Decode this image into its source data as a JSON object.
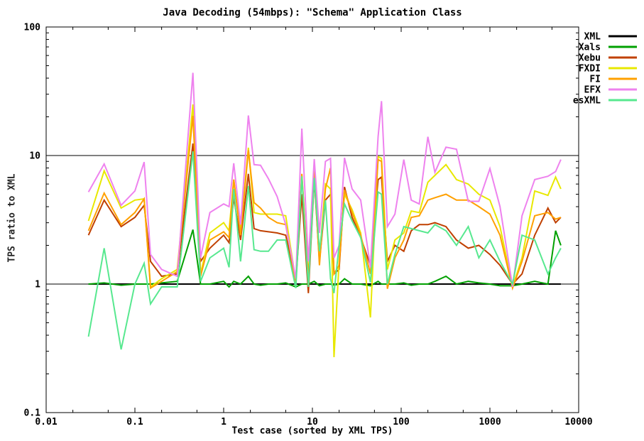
{
  "chart": {
    "title": "Java Decoding (54mbps): \"Schema\" Application Class",
    "xlabel": "Test case (sorted by XML TPS)",
    "ylabel": "TPS ratio to XML"
  },
  "chart_data": {
    "type": "line",
    "title": "Java Decoding (54mbps): \"Schema\" Application Class",
    "xlabel": "Test case (sorted by XML TPS)",
    "ylabel": "TPS ratio to XML",
    "x_scale": "log",
    "y_scale": "log",
    "x_range": [
      0.01,
      10000
    ],
    "y_range": [
      0.1,
      100
    ],
    "x_ticks": [
      {
        "v": 0.01,
        "label": "0.01"
      },
      {
        "v": 0.1,
        "label": "0.1"
      },
      {
        "v": 1,
        "label": "1"
      },
      {
        "v": 10,
        "label": "10"
      },
      {
        "v": 100,
        "label": "100"
      },
      {
        "v": 1000,
        "label": "1000"
      },
      {
        "v": 10000,
        "label": "10000"
      }
    ],
    "y_ticks": [
      {
        "v": 0.1,
        "label": "0.1"
      },
      {
        "v": 1,
        "label": "1"
      },
      {
        "v": 10,
        "label": "10"
      },
      {
        "v": 100,
        "label": "100"
      }
    ],
    "y_gridlines": [
      1,
      10
    ],
    "x_minor_multiples": [
      2,
      5
    ],
    "y_minor_multiples": [
      2,
      3,
      4,
      5,
      6,
      7,
      8,
      9
    ],
    "legend_position": "top-right-outside",
    "x": [
      0.03,
      0.045,
      0.07,
      0.1,
      0.127,
      0.15,
      0.2,
      0.3,
      0.45,
      0.55,
      0.7,
      1.0,
      1.15,
      1.3,
      1.55,
      1.9,
      2.2,
      2.6,
      3.2,
      4.0,
      5.0,
      6.5,
      7.6,
      9.0,
      10.5,
      12,
      14,
      16,
      17.5,
      20,
      23,
      28,
      35,
      45,
      55,
      60,
      70,
      85,
      107,
      130,
      160,
      200,
      240,
      320,
      420,
      570,
      750,
      1000,
      1300,
      1800,
      2300,
      3200,
      4500,
      5500,
      6300
    ],
    "series": [
      {
        "name": "XML",
        "color": "#000000",
        "values": [
          1,
          1,
          1,
          1,
          1,
          1,
          1,
          1,
          1,
          1,
          1,
          1,
          1,
          1,
          1,
          1,
          1,
          1,
          1,
          1,
          1,
          1,
          1,
          1,
          1,
          1,
          1,
          1,
          1,
          1,
          1,
          1,
          1,
          1,
          1,
          1,
          1,
          1,
          1,
          1,
          1,
          1,
          1,
          1,
          1,
          1,
          1,
          1,
          1,
          1,
          1,
          1,
          1,
          1,
          1
        ]
      },
      {
        "name": "Xals",
        "color": "#00a000",
        "values": [
          1,
          1.02,
          0.98,
          1,
          1,
          1,
          1.02,
          1.05,
          2.65,
          1,
          1,
          1.05,
          0.95,
          1.05,
          1,
          1.15,
          1,
          0.98,
          1,
          1,
          1.02,
          0.95,
          1,
          1,
          1.05,
          0.97,
          1,
          1,
          0.98,
          1,
          1.1,
          1,
          1,
          0.97,
          1.05,
          1,
          1,
          1,
          1.02,
          0.98,
          1,
          1,
          1.05,
          1.15,
          1,
          1.05,
          1.02,
          1,
          0.97,
          0.97,
          1,
          1.05,
          1,
          2.6,
          2
        ]
      },
      {
        "name": "Xebu",
        "color": "#c04000",
        "values": [
          2.4,
          4.5,
          2.8,
          3.3,
          4.1,
          1.5,
          1.15,
          1.2,
          12.4,
          1.5,
          1.9,
          2.4,
          2.1,
          4.7,
          2.2,
          7.2,
          2.7,
          2.6,
          2.55,
          2.5,
          2.4,
          1.05,
          5,
          0.85,
          6.6,
          1.5,
          4.5,
          5,
          1.2,
          1.3,
          5.7,
          3.3,
          2.3,
          1.4,
          6.5,
          6.8,
          1.5,
          2,
          1.8,
          2.6,
          2.9,
          2.9,
          3,
          2.8,
          2.2,
          1.9,
          2,
          1.7,
          1.4,
          1,
          1.2,
          2.4,
          3.9,
          3,
          3.3
        ]
      },
      {
        "name": "FXDI",
        "color": "#e8e800",
        "values": [
          3.1,
          7.6,
          3.9,
          4.5,
          4.6,
          0.95,
          1.1,
          1.3,
          25,
          1.2,
          2.5,
          3,
          2.6,
          6.5,
          2.6,
          11.5,
          3.6,
          3.5,
          3.5,
          3.5,
          3.4,
          1.05,
          7,
          1.15,
          8.2,
          1.6,
          6,
          5.5,
          0.27,
          1.5,
          5,
          3.8,
          2.5,
          0.55,
          9.8,
          9.5,
          1.3,
          2.2,
          2.5,
          3.7,
          3.6,
          6.2,
          7,
          8.5,
          6.5,
          6,
          5,
          4.5,
          2.8,
          0.95,
          1.6,
          5.3,
          4.9,
          6.8,
          5.5
        ]
      },
      {
        "name": "FI",
        "color": "#ffa000",
        "values": [
          2.6,
          5.1,
          2.9,
          3.6,
          4.6,
          0.93,
          1.05,
          1.25,
          20.4,
          1.15,
          2.2,
          2.55,
          2.3,
          6.5,
          2.4,
          11,
          4.3,
          3.9,
          3.3,
          3,
          2.9,
          1,
          7.2,
          1.1,
          7.6,
          1.4,
          5.5,
          8,
          1.2,
          1.4,
          5.4,
          3.6,
          2.4,
          1.2,
          9.3,
          9,
          0.92,
          1.6,
          2.2,
          3.3,
          3.4,
          4.5,
          4.7,
          5,
          4.5,
          4.5,
          4,
          3.5,
          2.4,
          0.93,
          1.5,
          3.4,
          3.6,
          3.2,
          3.3
        ]
      },
      {
        "name": "EFX",
        "color": "#ee82ee",
        "values": [
          5.2,
          8.6,
          4.1,
          5.3,
          8.9,
          1.7,
          1.3,
          1.15,
          44,
          1.6,
          3.6,
          4.2,
          4,
          8.7,
          2.9,
          20.5,
          8.5,
          8.4,
          6.6,
          4.8,
          2.9,
          1.1,
          16.2,
          1.5,
          9.4,
          2.5,
          9,
          9.5,
          1.6,
          2,
          9.6,
          5.5,
          4.5,
          1.35,
          14,
          26.5,
          2.8,
          3.5,
          9.3,
          4.5,
          4.2,
          14,
          7.4,
          11.6,
          11.2,
          4.4,
          4.4,
          7.9,
          4,
          0.95,
          3.4,
          6.5,
          6.9,
          7.5,
          9.3
        ]
      },
      {
        "name": "esXML",
        "color": "#57e88f",
        "values": [
          0.39,
          1.9,
          0.31,
          1,
          1.45,
          0.7,
          0.95,
          0.95,
          10.8,
          1.05,
          1.6,
          1.9,
          1.35,
          5.5,
          1.5,
          5.8,
          1.85,
          1.8,
          1.8,
          2.2,
          2.2,
          0.93,
          6.9,
          0.95,
          6.7,
          1.8,
          4.5,
          1.1,
          0.85,
          2,
          4.2,
          3.1,
          2.3,
          1.03,
          5.2,
          5,
          1,
          1.7,
          2.8,
          2.7,
          2.6,
          2.5,
          2.9,
          2.6,
          2,
          2.8,
          1.6,
          2.2,
          1.5,
          1,
          2.4,
          2.2,
          1.2,
          1.6,
          1.9
        ]
      }
    ]
  }
}
